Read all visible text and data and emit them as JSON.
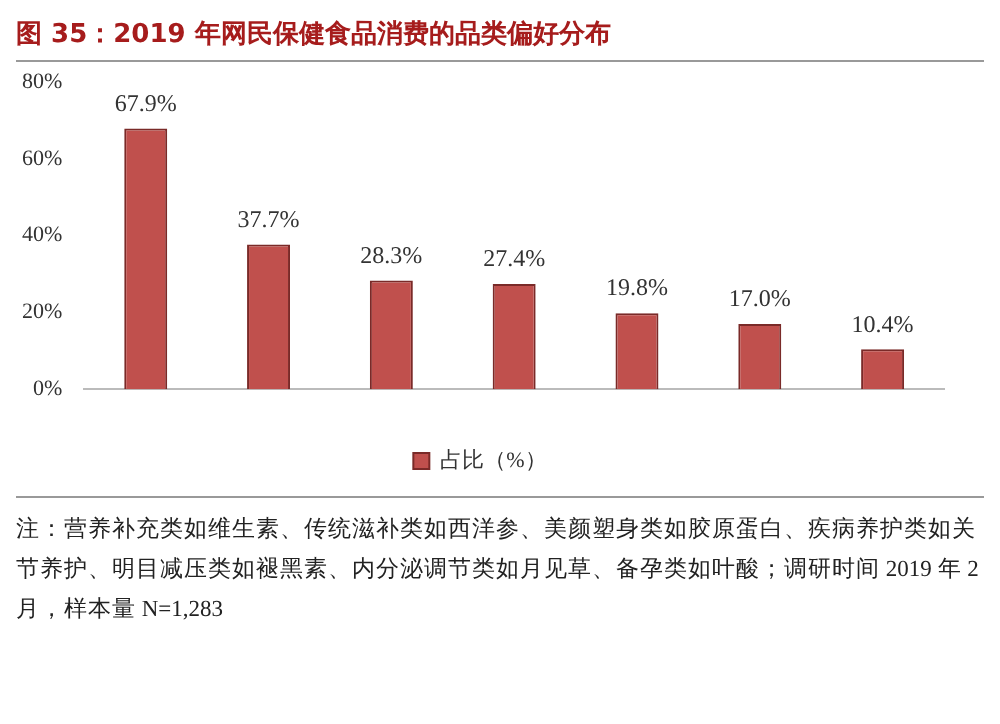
{
  "chart_data": {
    "type": "bar",
    "title": "图 35：2019 年网民保健食品消费的品类偏好分布",
    "categories": [
      null,
      null,
      null,
      null,
      null,
      null,
      null
    ],
    "series": [
      {
        "name": "占比（%）",
        "color": "#c0504d",
        "values": [
          67.9,
          37.7,
          28.3,
          27.4,
          19.8,
          17.0,
          10.4
        ],
        "value_labels": [
          "67.9%",
          "37.7%",
          "28.3%",
          "27.4%",
          "19.8%",
          "17.0%",
          "10.4%"
        ]
      }
    ],
    "ylim": [
      0,
      80
    ],
    "yticks": [
      {
        "value": 0,
        "label": "0%"
      },
      {
        "value": 20,
        "label": "20%"
      },
      {
        "value": 40,
        "label": "40%"
      },
      {
        "value": 60,
        "label": "60%"
      },
      {
        "value": 80,
        "label": "80%"
      }
    ],
    "legend": "bottom",
    "annotations": [
      "注：营养补充类如维生素、传统滋补类如西洋参、美颜塑身类如胶原蛋白、疾病养护类如关节养护、明目减压类如褪黑素、内分泌调节类如月见草、备孕类如叶酸；调研时间 2019 年 2 月，样本量 N=1,283"
    ]
  }
}
